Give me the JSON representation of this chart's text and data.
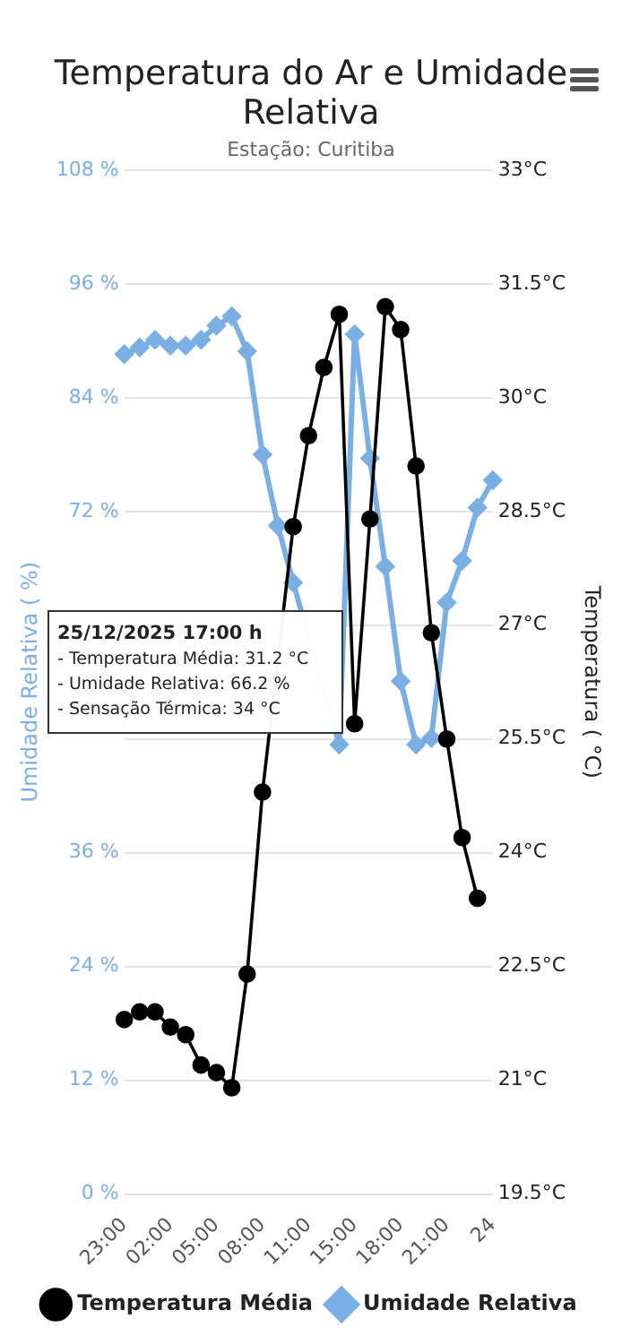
{
  "chart_data": {
    "type": "line",
    "title": "Temperatura do Ar e Umidade Relativa",
    "subtitle": "Estação: Curitiba",
    "ylabel": "Umidade Relativa ( %)",
    "y2label": "Temperatura ( °C)",
    "categories": [
      "23:00",
      null,
      null,
      "02:00",
      null,
      null,
      "05:00",
      null,
      null,
      "08:00",
      null,
      null,
      "11:00",
      null,
      null,
      "15:00",
      null,
      null,
      "18:00",
      null,
      null,
      "21:00",
      null,
      null,
      "24"
    ],
    "series": [
      {
        "name": "Temperatura Média",
        "color": "#000000",
        "axis": "y2",
        "marker": "circle",
        "values": [
          21.8,
          21.9,
          21.9,
          21.7,
          21.6,
          21.2,
          21.1,
          20.9,
          22.4,
          24.8,
          null,
          28.3,
          29.5,
          30.4,
          31.1,
          25.7,
          28.4,
          31.2,
          30.9,
          29.1,
          26.9,
          25.5,
          24.2,
          23.4,
          null
        ]
      },
      {
        "name": "Umidade Relativa",
        "color": "#7aafe3",
        "marker": "diamond",
        "values": [
          88.6,
          89.3,
          90.1,
          89.5,
          89.5,
          90.1,
          91.6,
          92.6,
          88.9,
          78.0,
          70.5,
          64.5,
          null,
          null,
          47.4,
          90.7,
          77.6,
          66.2,
          54.1,
          47.4,
          48.1,
          62.4,
          66.8,
          72.4,
          75.3
        ]
      }
    ],
    "ylim": [
      0,
      108
    ],
    "yticks": [
      {
        "value": 0,
        "label": "0 %"
      },
      {
        "value": 12,
        "label": "12 %"
      },
      {
        "value": 24,
        "label": "24 %"
      },
      {
        "value": 36,
        "label": "36 %"
      },
      {
        "value": 48,
        "label": null
      },
      {
        "value": 60,
        "label": null
      },
      {
        "value": 72,
        "label": "72 %"
      },
      {
        "value": 84,
        "label": "84 %"
      },
      {
        "value": 96,
        "label": "96 %"
      },
      {
        "value": 108,
        "label": "108 %"
      }
    ],
    "y2lim": [
      19.5,
      33
    ],
    "y2ticks": [
      {
        "value": 19.5,
        "label": "19.5°C"
      },
      {
        "value": 21,
        "label": "21°C"
      },
      {
        "value": 22.5,
        "label": "22.5°C"
      },
      {
        "value": 24,
        "label": "24°C"
      },
      {
        "value": 25.5,
        "label": "25.5°C"
      },
      {
        "value": 27,
        "label": "27°C"
      },
      {
        "value": 28.5,
        "label": "28.5°C"
      },
      {
        "value": 30,
        "label": "30°C"
      },
      {
        "value": 31.5,
        "label": "31.5°C"
      },
      {
        "value": 33,
        "label": "33°C"
      }
    ],
    "grid": "y",
    "legend": "bottom",
    "line_style": "solid",
    "annotations": [
      "25/12/2025 17:00 h",
      "- Temperatura Média: 31.2 °C",
      "- Umidade Relativa: 66.2 %",
      "- Sensação Térmica: 34 °C"
    ]
  }
}
